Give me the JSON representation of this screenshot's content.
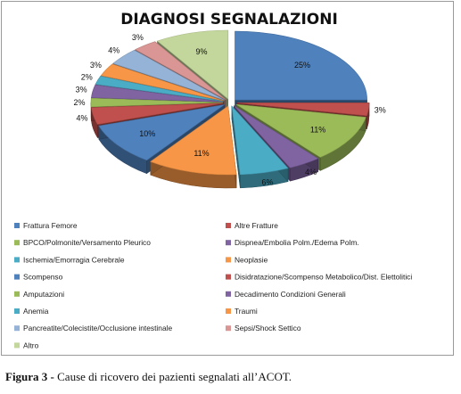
{
  "chart_data": {
    "type": "pie",
    "title": "DIAGNOSI SEGNALAZIONI",
    "categories": [
      "Frattura Femore",
      "Altre Fratture",
      "BPCO/Polmonite/Versamento Pleurico",
      "Dispnea/Embolia Polm./Edema Polm.",
      "Ischemia/Emorragia Cerebrale",
      "Neoplasie",
      "Scompenso",
      "Disidratazione/Scompenso Metabolico/Dist. Elettolitici",
      "Amputazioni",
      "Decadimento Condizioni Generali",
      "Anemia",
      "Traumi",
      "Pancreatite/Colecistite/Occlusione intestinale",
      "Sepsi/Shock Settico",
      "Altro"
    ],
    "values": [
      25,
      3,
      11,
      4,
      6,
      11,
      10,
      4,
      2,
      3,
      2,
      3,
      4,
      3,
      9
    ],
    "labels": [
      "25%",
      "3%",
      "11%",
      "4%",
      "6%",
      "11%",
      "10%",
      "4%",
      "2%",
      "3%",
      "2%",
      "3%",
      "4%",
      "3%",
      "9%"
    ],
    "colors": [
      "#4f81bd",
      "#c0504d",
      "#9bbb59",
      "#8064a2",
      "#4bacc6",
      "#f79646",
      "#4f81bd",
      "#c0504d",
      "#9bbb59",
      "#8064a2",
      "#4bacc6",
      "#f79646",
      "#95b3d7",
      "#d99694",
      "#c3d69b"
    ],
    "exploded": true,
    "three_d": true,
    "legend": "bottom, two columns"
  },
  "caption": {
    "prefix": "Figura 3 -",
    "text": " Cause di ricovero dei pazienti segnalati all’ACOT."
  }
}
